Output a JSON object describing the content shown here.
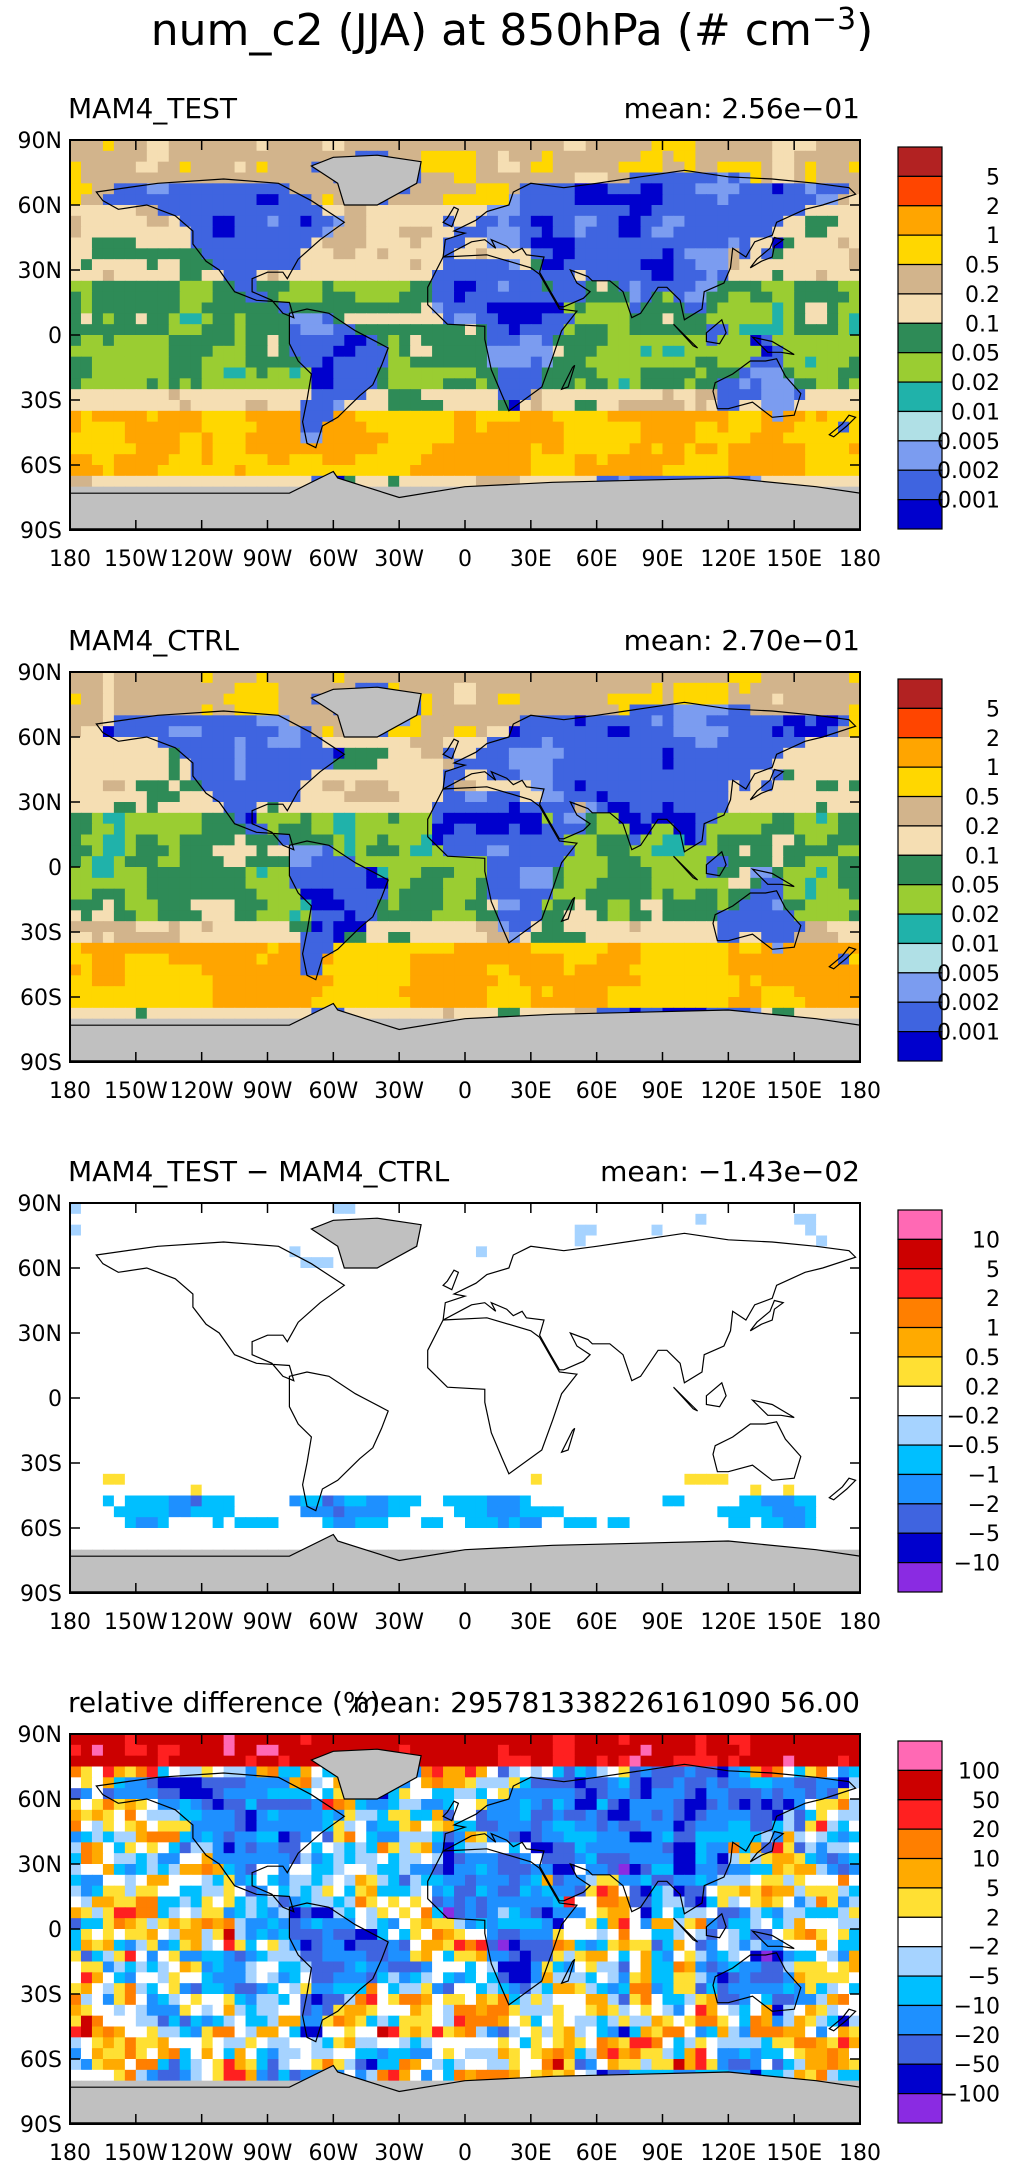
{
  "figure": {
    "title": "num_c2 (JJA) at 850hPa (# cm",
    "title_sup": "−3",
    "title_tail": ")"
  },
  "chart_data": [
    {
      "type": "heatmap",
      "left_title": "MAM4_TEST",
      "right_title": "mean: 2.56e−01",
      "lat_ticks": [
        "90N",
        "60N",
        "30N",
        "0",
        "30S",
        "60S",
        "90S"
      ],
      "lon_ticks": [
        "180",
        "150W",
        "120W",
        "90W",
        "60W",
        "30W",
        "0",
        "30E",
        "60E",
        "90E",
        "120E",
        "150E",
        "180"
      ],
      "levels": [
        "5",
        "2",
        "1",
        "0.5",
        "0.2",
        "0.1",
        "0.05",
        "0.02",
        "0.01",
        "0.005",
        "0.002",
        "0.001"
      ],
      "colors": [
        "#b22222",
        "#ff4500",
        "#ffa500",
        "#ffd700",
        "#d2b48c",
        "#f5deb3",
        "#2e8b57",
        "#9acd32",
        "#20b2aa",
        "#b0e0e6",
        "#7b9cf0",
        "#3f64e0",
        "#0000cd"
      ],
      "missing_color": "#c0c0c0"
    },
    {
      "type": "heatmap",
      "left_title": "MAM4_CTRL",
      "right_title": "mean: 2.70e−01",
      "lat_ticks": [
        "90N",
        "60N",
        "30N",
        "0",
        "30S",
        "60S",
        "90S"
      ],
      "lon_ticks": [
        "180",
        "150W",
        "120W",
        "90W",
        "60W",
        "30W",
        "0",
        "30E",
        "60E",
        "90E",
        "120E",
        "150E",
        "180"
      ],
      "levels": [
        "5",
        "2",
        "1",
        "0.5",
        "0.2",
        "0.1",
        "0.05",
        "0.02",
        "0.01",
        "0.005",
        "0.002",
        "0.001"
      ],
      "colors": [
        "#b22222",
        "#ff4500",
        "#ffa500",
        "#ffd700",
        "#d2b48c",
        "#f5deb3",
        "#2e8b57",
        "#9acd32",
        "#20b2aa",
        "#b0e0e6",
        "#7b9cf0",
        "#3f64e0",
        "#0000cd"
      ],
      "missing_color": "#c0c0c0"
    },
    {
      "type": "heatmap",
      "left_title": "MAM4_TEST − MAM4_CTRL",
      "right_title": "mean: −1.43e−02",
      "lat_ticks": [
        "90N",
        "60N",
        "30N",
        "0",
        "30S",
        "60S",
        "90S"
      ],
      "lon_ticks": [
        "180",
        "150W",
        "120W",
        "90W",
        "60W",
        "30W",
        "0",
        "30E",
        "60E",
        "90E",
        "120E",
        "150E",
        "180"
      ],
      "levels": [
        "10",
        "5",
        "2",
        "1",
        "0.5",
        "0.2",
        "−0.2",
        "−0.5",
        "−1",
        "−2",
        "−5",
        "−10"
      ],
      "colors": [
        "#ff69b4",
        "#cc0000",
        "#ff2020",
        "#ff7f00",
        "#ffaa00",
        "#ffe033",
        "#ffffff",
        "#a6d3ff",
        "#00bfff",
        "#1e90ff",
        "#3f64e0",
        "#0000cd",
        "#8a2be2"
      ],
      "missing_color": "#c0c0c0"
    },
    {
      "type": "heatmap",
      "left_title": "relative difference (%)",
      "right_title": "mean: 295781338226161090 56.00",
      "lat_ticks": [
        "90N",
        "60N",
        "30N",
        "0",
        "30S",
        "60S",
        "90S"
      ],
      "lon_ticks": [
        "180",
        "150W",
        "120W",
        "90W",
        "60W",
        "30W",
        "0",
        "30E",
        "60E",
        "90E",
        "120E",
        "150E",
        "180"
      ],
      "levels": [
        "100",
        "50",
        "20",
        "10",
        "5",
        "2",
        "−2",
        "−5",
        "−10",
        "−20",
        "−50",
        "−100"
      ],
      "colors": [
        "#ff69b4",
        "#cc0000",
        "#ff2020",
        "#ff7f00",
        "#ffaa00",
        "#ffe033",
        "#ffffff",
        "#a6d3ff",
        "#00bfff",
        "#1e90ff",
        "#3f64e0",
        "#0000cd",
        "#8a2be2"
      ],
      "missing_color": "#c0c0c0"
    }
  ]
}
